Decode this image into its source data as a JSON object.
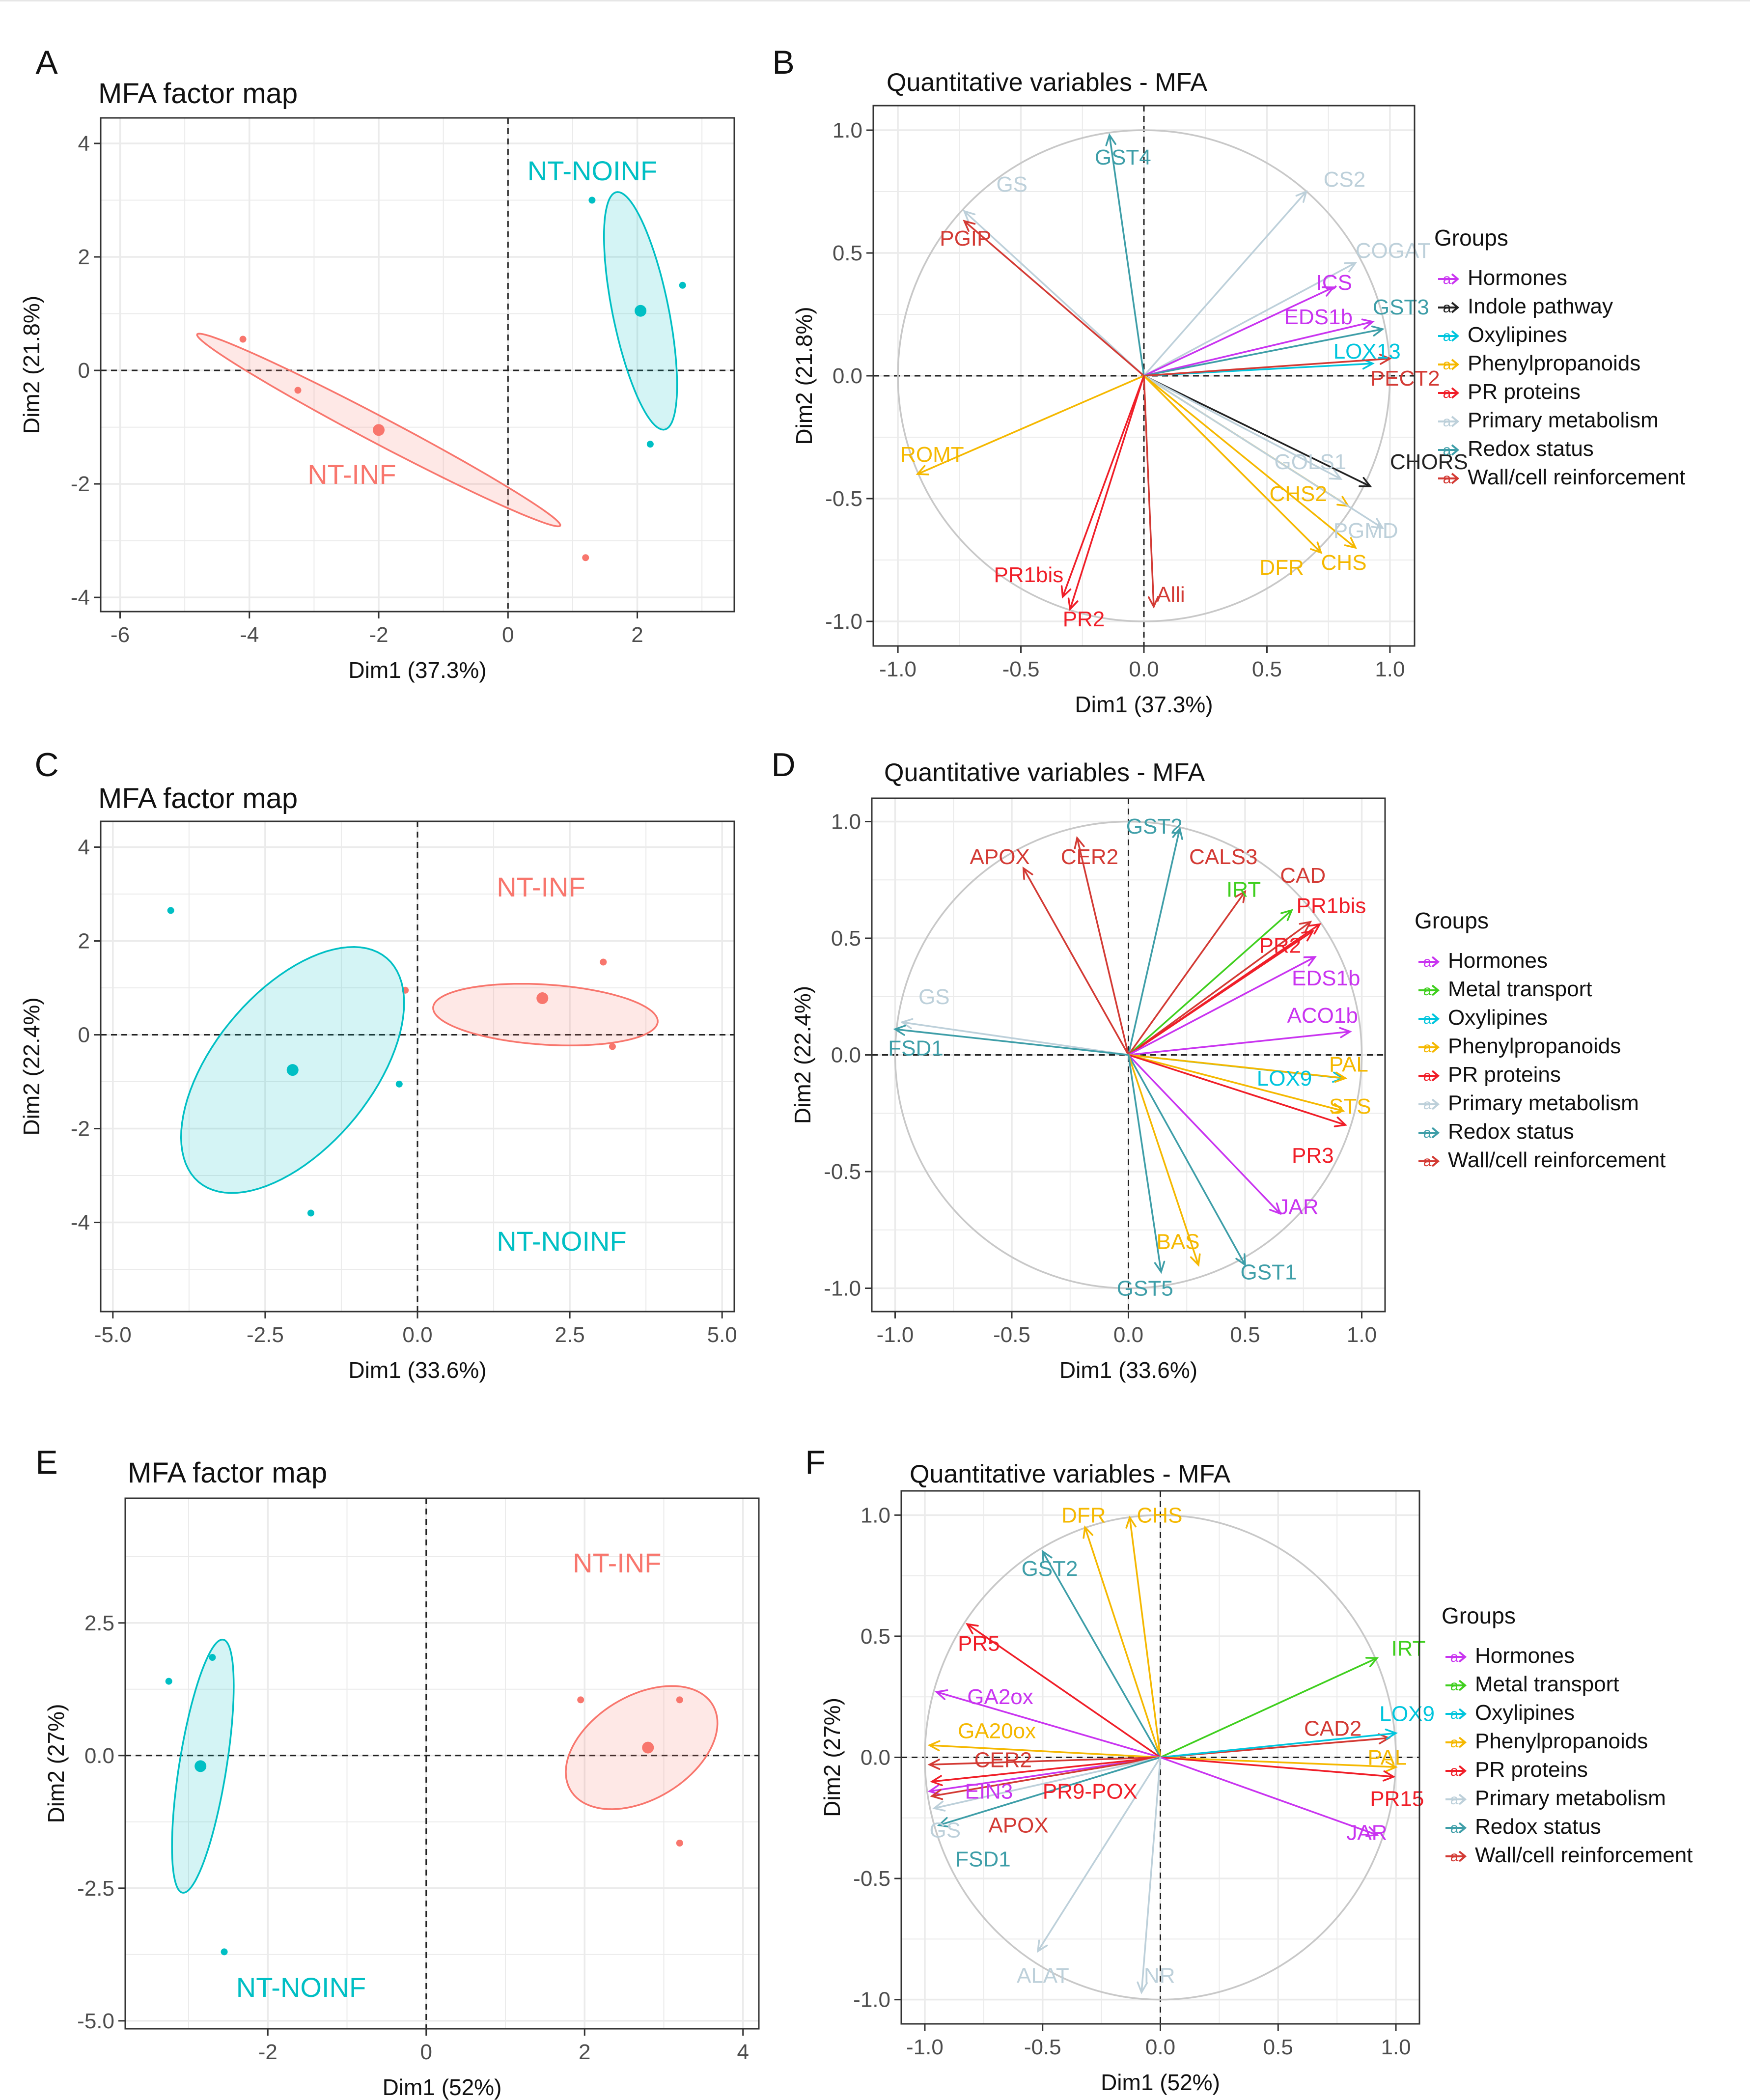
{
  "panel_letters": [
    "A",
    "B",
    "C",
    "D",
    "E",
    "F"
  ],
  "colors": {
    "infected": "#F8766D",
    "non_infected": "#00BFC4",
    "grid": "#ebebeb",
    "circle": "#c8c8c8",
    "axis_text": "#4d4d4d",
    "Hormones": "#C934F0",
    "Indole pathway": "#222222",
    "Metal transport": "#3FCF1E",
    "Oxylipines": "#00C5DD",
    "Phenylpropanoids": "#F5B800",
    "PR proteins": "#F01E28",
    "Primary metabolism": "#BDD0DA",
    "Redox status": "#3E9EA8",
    "Wall/cell reinforcement": "#D33A34"
  },
  "legend": {
    "title": "Groups"
  },
  "chart_data": [
    {
      "panel": "A",
      "type": "scatter",
      "title": "MFA factor map",
      "xlabel": "Dim1 (37.3%)",
      "ylabel": "Dim2 (21.8%)",
      "xlim": [
        -6.3,
        3.5
      ],
      "ylim": [
        -4.25,
        4.45
      ],
      "xticks": [
        -6,
        -4,
        -2,
        0,
        2
      ],
      "xtick_labels": [
        "-6",
        "-4",
        "-2",
        "0",
        "2"
      ],
      "yticks": [
        -4,
        -2,
        0,
        2,
        4
      ],
      "ytick_labels": [
        "-4",
        "-2",
        "0",
        "2",
        "4"
      ],
      "groups": [
        {
          "name": "NT-INF",
          "color": "infected",
          "label_at": [
            -3.1,
            -2.0
          ],
          "points": [
            [
              -4.1,
              0.55
            ],
            [
              -3.25,
              -0.35
            ],
            [
              1.2,
              -3.3
            ]
          ],
          "centroid": [
            -2.0,
            -1.05
          ],
          "ellipse": {
            "center": [
              -2.0,
              -1.05
            ],
            "rx": 6.55,
            "ry": 0.45,
            "angle_deg": -31
          }
        },
        {
          "name": "NT-NOINF",
          "color": "non_infected",
          "label_at": [
            0.3,
            3.35
          ],
          "points": [
            [
              1.3,
              3.0
            ],
            [
              2.7,
              1.5
            ],
            [
              2.2,
              -1.3
            ]
          ],
          "centroid": [
            2.05,
            1.05
          ],
          "ellipse": {
            "center": [
              2.05,
              1.05
            ],
            "rx": 0.87,
            "ry": 4.25,
            "angle_deg": 10
          }
        }
      ]
    },
    {
      "panel": "B",
      "type": "correlation_circle",
      "title": "Quantitative variables - MFA",
      "xlabel": "Dim1 (37.3%)",
      "ylabel": "Dim2 (21.8%)",
      "xlim": [
        -1.1,
        1.1
      ],
      "ylim": [
        -1.1,
        1.1
      ],
      "ticks": [
        -1.0,
        -0.5,
        0.0,
        0.5,
        1.0
      ],
      "tick_labels": [
        "-1.0",
        "-0.5",
        "0.0",
        "0.5",
        "1.0"
      ],
      "groups": [
        "Hormones",
        "Indole pathway",
        "Oxylipines",
        "Phenylpropanoids",
        "PR proteins",
        "Primary metabolism",
        "Redox status",
        "Wall/cell reinforcement"
      ],
      "variables": [
        {
          "name": "GS",
          "group": "Primary metabolism",
          "x": -0.73,
          "y": 0.67,
          "lx": -0.6,
          "ly": 0.78
        },
        {
          "name": "GST4",
          "group": "Redox status",
          "x": -0.14,
          "y": 0.98,
          "lx": -0.2,
          "ly": 0.89
        },
        {
          "name": "PGIP",
          "group": "Wall/cell reinforcement",
          "x": -0.73,
          "y": 0.63,
          "lx": -0.83,
          "ly": 0.56
        },
        {
          "name": "CS2",
          "group": "Primary metabolism",
          "x": 0.66,
          "y": 0.75,
          "lx": 0.73,
          "ly": 0.8
        },
        {
          "name": "COGAT",
          "group": "Primary metabolism",
          "x": 0.86,
          "y": 0.46,
          "lx": 0.86,
          "ly": 0.51
        },
        {
          "name": "ICS",
          "group": "Hormones",
          "x": 0.77,
          "y": 0.36,
          "lx": 0.7,
          "ly": 0.38
        },
        {
          "name": "EDS1b",
          "group": "Hormones",
          "x": 0.93,
          "y": 0.22,
          "lx": 0.57,
          "ly": 0.24
        },
        {
          "name": "GST3",
          "group": "Redox status",
          "x": 0.97,
          "y": 0.19,
          "lx": 0.93,
          "ly": 0.28
        },
        {
          "name": "LOX13",
          "group": "Oxylipines",
          "x": 0.93,
          "y": 0.05,
          "lx": 0.77,
          "ly": 0.1
        },
        {
          "name": "PECT2",
          "group": "Wall/cell reinforcement",
          "x": 1.0,
          "y": 0.07,
          "lx": 0.92,
          "ly": -0.01
        },
        {
          "name": "CHORS",
          "group": "Indole pathway",
          "x": 0.92,
          "y": -0.45,
          "lx": 1.0,
          "ly": -0.35
        },
        {
          "name": "GOLS1",
          "group": "Primary metabolism",
          "x": 0.8,
          "y": -0.42,
          "lx": 0.53,
          "ly": -0.35
        },
        {
          "name": "CHS2",
          "group": "Phenylpropanoids",
          "x": 0.83,
          "y": -0.53,
          "lx": 0.51,
          "ly": -0.48
        },
        {
          "name": "PGMD",
          "group": "Primary metabolism",
          "x": 0.97,
          "y": -0.62,
          "lx": 0.77,
          "ly": -0.63
        },
        {
          "name": "CHS",
          "group": "Phenylpropanoids",
          "x": 0.86,
          "y": -0.7,
          "lx": 0.72,
          "ly": -0.76
        },
        {
          "name": "DFR",
          "group": "Phenylpropanoids",
          "x": 0.72,
          "y": -0.72,
          "lx": 0.47,
          "ly": -0.78
        },
        {
          "name": "ROMT",
          "group": "Phenylpropanoids",
          "x": -0.92,
          "y": -0.4,
          "lx": -0.99,
          "ly": -0.32
        },
        {
          "name": "PR1bis",
          "group": "PR proteins",
          "x": -0.33,
          "y": -0.9,
          "lx": -0.61,
          "ly": -0.81
        },
        {
          "name": "PR2",
          "group": "PR proteins",
          "x": -0.3,
          "y": -0.95,
          "lx": -0.33,
          "ly": -0.99
        },
        {
          "name": "Alli",
          "group": "Wall/cell reinforcement",
          "x": 0.04,
          "y": -0.94,
          "lx": 0.05,
          "ly": -0.89
        }
      ]
    },
    {
      "panel": "C",
      "type": "scatter",
      "title": "MFA factor map",
      "xlabel": "Dim1 (33.6%)",
      "ylabel": "Dim2 (22.4%)",
      "xlim": [
        -5.2,
        5.2
      ],
      "ylim": [
        -5.9,
        4.55
      ],
      "xticks": [
        -5,
        -2.5,
        0,
        2.5,
        5
      ],
      "xtick_labels": [
        "-5.0",
        "-2.5",
        "0.0",
        "2.5",
        "5.0"
      ],
      "yticks": [
        -4,
        -2,
        0,
        2,
        4
      ],
      "ytick_labels": [
        "-4",
        "-2",
        "0",
        "2",
        "4"
      ],
      "groups": [
        {
          "name": "NT-INF",
          "color": "infected",
          "label_at": [
            1.3,
            2.95
          ],
          "points": [
            [
              -0.2,
              0.95
            ],
            [
              3.05,
              1.55
            ],
            [
              3.2,
              -0.25
            ]
          ],
          "centroid": [
            2.05,
            0.78
          ],
          "ellipse": {
            "center": [
              2.1,
              0.43
            ],
            "rx": 3.7,
            "ry": 1.28,
            "angle_deg": -5
          }
        },
        {
          "name": "NT-NOINF",
          "color": "non_infected",
          "label_at": [
            1.3,
            -4.6
          ],
          "points": [
            [
              -4.05,
              2.65
            ],
            [
              -0.3,
              -1.05
            ],
            [
              -1.75,
              -3.8
            ]
          ],
          "centroid": [
            -2.05,
            -0.75
          ],
          "ellipse": {
            "center": [
              -2.05,
              -0.75
            ],
            "rx": 2.8,
            "ry": 5.75,
            "angle_deg": -28
          }
        }
      ]
    },
    {
      "panel": "D",
      "type": "correlation_circle",
      "title": "Quantitative variables - MFA",
      "xlabel": "Dim1 (33.6%)",
      "ylabel": "Dim2 (22.4%)",
      "xlim": [
        -1.1,
        1.1
      ],
      "ylim": [
        -1.1,
        1.1
      ],
      "ticks": [
        -1.0,
        -0.5,
        0.0,
        0.5,
        1.0
      ],
      "tick_labels": [
        "-1.0",
        "-0.5",
        "0.0",
        "0.5",
        "1.0"
      ],
      "groups": [
        "Hormones",
        "Metal transport",
        "Oxylipines",
        "Phenylpropanoids",
        "PR proteins",
        "Primary metabolism",
        "Redox status",
        "Wall/cell reinforcement"
      ],
      "variables": [
        {
          "name": "GST2",
          "group": "Redox status",
          "x": 0.22,
          "y": 0.97,
          "lx": -0.01,
          "ly": 0.98
        },
        {
          "name": "APOX",
          "group": "Wall/cell reinforcement",
          "x": -0.45,
          "y": 0.8,
          "lx": -0.68,
          "ly": 0.85
        },
        {
          "name": "CER2",
          "group": "Wall/cell reinforcement",
          "x": -0.22,
          "y": 0.93,
          "lx": -0.29,
          "ly": 0.85
        },
        {
          "name": "CALS3",
          "group": "Wall/cell reinforcement",
          "x": 0.5,
          "y": 0.7,
          "lx": 0.26,
          "ly": 0.85
        },
        {
          "name": "CAD",
          "group": "Wall/cell reinforcement",
          "x": 0.78,
          "y": 0.57,
          "lx": 0.65,
          "ly": 0.77
        },
        {
          "name": "IRT",
          "group": "Metal transport",
          "x": 0.7,
          "y": 0.62,
          "lx": 0.42,
          "ly": 0.71
        },
        {
          "name": "PR1bis",
          "group": "PR proteins",
          "x": 0.82,
          "y": 0.56,
          "lx": 0.72,
          "ly": 0.64
        },
        {
          "name": "PR2",
          "group": "PR proteins",
          "x": 0.79,
          "y": 0.53,
          "lx": 0.56,
          "ly": 0.47
        },
        {
          "name": "EDS1b",
          "group": "Hormones",
          "x": 0.8,
          "y": 0.42,
          "lx": 0.7,
          "ly": 0.33
        },
        {
          "name": "ACO1b",
          "group": "Hormones",
          "x": 0.95,
          "y": 0.1,
          "lx": 0.68,
          "ly": 0.17
        },
        {
          "name": "LOX9",
          "group": "Oxylipines",
          "x": 0.92,
          "y": -0.1,
          "lx": 0.55,
          "ly": -0.1
        },
        {
          "name": "PAL",
          "group": "Phenylpropanoids",
          "x": 0.93,
          "y": -0.1,
          "lx": 0.86,
          "ly": -0.04
        },
        {
          "name": "STS",
          "group": "Phenylpropanoids",
          "x": 0.92,
          "y": -0.24,
          "lx": 0.86,
          "ly": -0.22
        },
        {
          "name": "PR3",
          "group": "PR proteins",
          "x": 0.93,
          "y": -0.3,
          "lx": 0.7,
          "ly": -0.43
        },
        {
          "name": "JAR",
          "group": "Hormones",
          "x": 0.65,
          "y": -0.68,
          "lx": 0.64,
          "ly": -0.65
        },
        {
          "name": "GST1",
          "group": "Redox status",
          "x": 0.5,
          "y": -0.9,
          "lx": 0.48,
          "ly": -0.93
        },
        {
          "name": "BAS",
          "group": "Phenylpropanoids",
          "x": 0.3,
          "y": -0.9,
          "lx": 0.12,
          "ly": -0.8
        },
        {
          "name": "GST5",
          "group": "Redox status",
          "x": 0.14,
          "y": -0.93,
          "lx": -0.05,
          "ly": -1.0
        },
        {
          "name": "GS",
          "group": "Primary metabolism",
          "x": -0.97,
          "y": 0.14,
          "lx": -0.9,
          "ly": 0.25
        },
        {
          "name": "FSD1",
          "group": "Redox status",
          "x": -1.0,
          "y": 0.11,
          "lx": -1.03,
          "ly": 0.03
        }
      ]
    },
    {
      "panel": "E",
      "type": "scatter",
      "title": "MFA factor map",
      "xlabel": "Dim1 (52%)",
      "ylabel": "Dim2 (27%)",
      "xlim": [
        -3.8,
        4.2
      ],
      "ylim": [
        -5.15,
        4.85
      ],
      "xticks": [
        -2,
        0,
        2,
        4
      ],
      "xtick_labels": [
        "-2",
        "0",
        "2",
        "4"
      ],
      "yticks": [
        -5,
        -2.5,
        0,
        2.5
      ],
      "ytick_labels": [
        "-5.0",
        "-2.5",
        "0.0",
        "2.5"
      ],
      "groups": [
        {
          "name": "NT-INF",
          "color": "infected",
          "label_at": [
            1.85,
            3.45
          ],
          "points": [
            [
              1.95,
              1.05
            ],
            [
              3.2,
              1.05
            ],
            [
              3.2,
              -1.65
            ]
          ],
          "centroid": [
            2.8,
            0.15
          ],
          "ellipse": {
            "center": [
              2.72,
              0.15
            ],
            "rx": 1.6,
            "ry": 2.55,
            "angle_deg": -32
          }
        },
        {
          "name": "NT-NOINF",
          "color": "non_infected",
          "label_at": [
            -2.4,
            -4.55
          ],
          "points": [
            [
              -3.25,
              1.4
            ],
            [
              -2.7,
              1.85
            ],
            [
              -2.55,
              -3.7
            ]
          ],
          "centroid": [
            -2.85,
            -0.2
          ],
          "ellipse": {
            "center": [
              -2.82,
              -0.2
            ],
            "rx": 0.6,
            "ry": 4.8,
            "angle_deg": -6
          }
        }
      ]
    },
    {
      "panel": "F",
      "type": "correlation_circle",
      "title": "Quantitative variables - MFA",
      "xlabel": "Dim1 (52%)",
      "ylabel": "Dim2 (27%)",
      "xlim": [
        -1.1,
        1.1
      ],
      "ylim": [
        -1.1,
        1.1
      ],
      "ticks": [
        -1.0,
        -0.5,
        0.0,
        0.5,
        1.0
      ],
      "tick_labels": [
        "-1.0",
        "-0.5",
        "0.0",
        "0.5",
        "1.0"
      ],
      "groups": [
        "Hormones",
        "Metal transport",
        "Oxylipines",
        "Phenylpropanoids",
        "PR proteins",
        "Primary metabolism",
        "Redox status",
        "Wall/cell reinforcement"
      ],
      "variables": [
        {
          "name": "DFR",
          "group": "Phenylpropanoids",
          "x": -0.32,
          "y": 0.95,
          "lx": -0.42,
          "ly": 1.0
        },
        {
          "name": "CHS",
          "group": "Phenylpropanoids",
          "x": -0.13,
          "y": 0.99,
          "lx": -0.1,
          "ly": 1.0
        },
        {
          "name": "GST2",
          "group": "Redox status",
          "x": -0.5,
          "y": 0.85,
          "lx": -0.59,
          "ly": 0.78
        },
        {
          "name": "PR5",
          "group": "PR proteins",
          "x": -0.82,
          "y": 0.55,
          "lx": -0.86,
          "ly": 0.47
        },
        {
          "name": "IRT",
          "group": "Metal transport",
          "x": 0.92,
          "y": 0.41,
          "lx": 0.98,
          "ly": 0.45
        },
        {
          "name": "GA2ox",
          "group": "Hormones",
          "x": -0.95,
          "y": 0.27,
          "lx": -0.82,
          "ly": 0.25
        },
        {
          "name": "GA20ox",
          "group": "Phenylpropanoids",
          "x": -0.98,
          "y": 0.05,
          "lx": -0.86,
          "ly": 0.11
        },
        {
          "name": "CAD2",
          "group": "Wall/cell reinforcement",
          "x": 0.97,
          "y": 0.08,
          "lx": 0.61,
          "ly": 0.12
        },
        {
          "name": "LOX9",
          "group": "Oxylipines",
          "x": 1.0,
          "y": 0.1,
          "lx": 0.93,
          "ly": 0.18
        },
        {
          "name": "PAL",
          "group": "Phenylpropanoids",
          "x": 1.0,
          "y": -0.04,
          "lx": 0.88,
          "ly": 0.0
        },
        {
          "name": "CER2",
          "group": "Wall/cell reinforcement",
          "x": -0.98,
          "y": -0.03,
          "lx": -0.79,
          "ly": -0.01
        },
        {
          "name": "PR15",
          "group": "PR proteins",
          "x": 0.99,
          "y": -0.08,
          "lx": 0.89,
          "ly": -0.17
        },
        {
          "name": "EIN3",
          "group": "Hormones",
          "x": -0.98,
          "y": -0.14,
          "lx": -0.83,
          "ly": -0.14
        },
        {
          "name": "PR9-POX",
          "group": "PR proteins",
          "x": -0.97,
          "y": -0.1,
          "lx": -0.5,
          "ly": -0.14
        },
        {
          "name": "APOX",
          "group": "Wall/cell reinforcement",
          "x": -0.97,
          "y": -0.16,
          "lx": -0.73,
          "ly": -0.28
        },
        {
          "name": "JAR",
          "group": "Hormones",
          "x": 0.92,
          "y": -0.32,
          "lx": 0.79,
          "ly": -0.31
        },
        {
          "name": "GS",
          "group": "Primary metabolism",
          "x": -0.96,
          "y": -0.21,
          "lx": -0.98,
          "ly": -0.3
        },
        {
          "name": "FSD1",
          "group": "Redox status",
          "x": -0.94,
          "y": -0.28,
          "lx": -0.87,
          "ly": -0.42
        },
        {
          "name": "ALAT",
          "group": "Primary metabolism",
          "x": -0.52,
          "y": -0.8,
          "lx": -0.61,
          "ly": -0.9
        },
        {
          "name": "NR",
          "group": "Primary metabolism",
          "x": -0.08,
          "y": -0.97,
          "lx": -0.07,
          "ly": -0.9
        }
      ]
    }
  ]
}
